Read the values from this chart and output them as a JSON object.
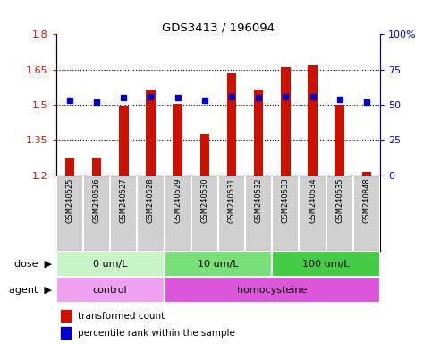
{
  "title": "GDS3413 / 196094",
  "samples": [
    "GSM240525",
    "GSM240526",
    "GSM240527",
    "GSM240528",
    "GSM240529",
    "GSM240530",
    "GSM240531",
    "GSM240532",
    "GSM240533",
    "GSM240534",
    "GSM240535",
    "GSM240848"
  ],
  "transformed_counts": [
    1.275,
    1.275,
    1.495,
    1.565,
    1.505,
    1.375,
    1.635,
    1.565,
    1.66,
    1.67,
    1.5,
    1.215
  ],
  "percentile_ranks": [
    53,
    52,
    55,
    56,
    55,
    53,
    56,
    55,
    56,
    56,
    54,
    52
  ],
  "bar_color": "#cc1100",
  "dot_color": "#0000cc",
  "ylim_left": [
    1.2,
    1.8
  ],
  "ylim_right": [
    0,
    100
  ],
  "yticks_left": [
    1.2,
    1.35,
    1.5,
    1.65,
    1.8
  ],
  "yticks_right": [
    0,
    25,
    50,
    75,
    100
  ],
  "ytick_labels_left": [
    "1.2",
    "1.35",
    "1.5",
    "1.65",
    "1.8"
  ],
  "ytick_labels_right": [
    "0",
    "25",
    "50",
    "75",
    "100%"
  ],
  "hlines": [
    1.35,
    1.5,
    1.65
  ],
  "dose_groups": [
    {
      "label": "0 um/L",
      "start": 0,
      "end": 4,
      "color": "#c8f5c8"
    },
    {
      "label": "10 um/L",
      "start": 4,
      "end": 8,
      "color": "#77e077"
    },
    {
      "label": "100 um/L",
      "start": 8,
      "end": 12,
      "color": "#44cc44"
    }
  ],
  "agent_groups": [
    {
      "label": "control",
      "start": 0,
      "end": 4,
      "color": "#f0a0f0"
    },
    {
      "label": "homocysteine",
      "start": 4,
      "end": 12,
      "color": "#dd55dd"
    }
  ],
  "dose_label": "dose",
  "agent_label": "agent",
  "legend_items": [
    {
      "color": "#cc1100",
      "label": "transformed count"
    },
    {
      "color": "#0000cc",
      "label": "percentile rank within the sample"
    }
  ],
  "tick_label_area_color": "#d0d0d0",
  "tick_cell_border": "#aaaaaa"
}
